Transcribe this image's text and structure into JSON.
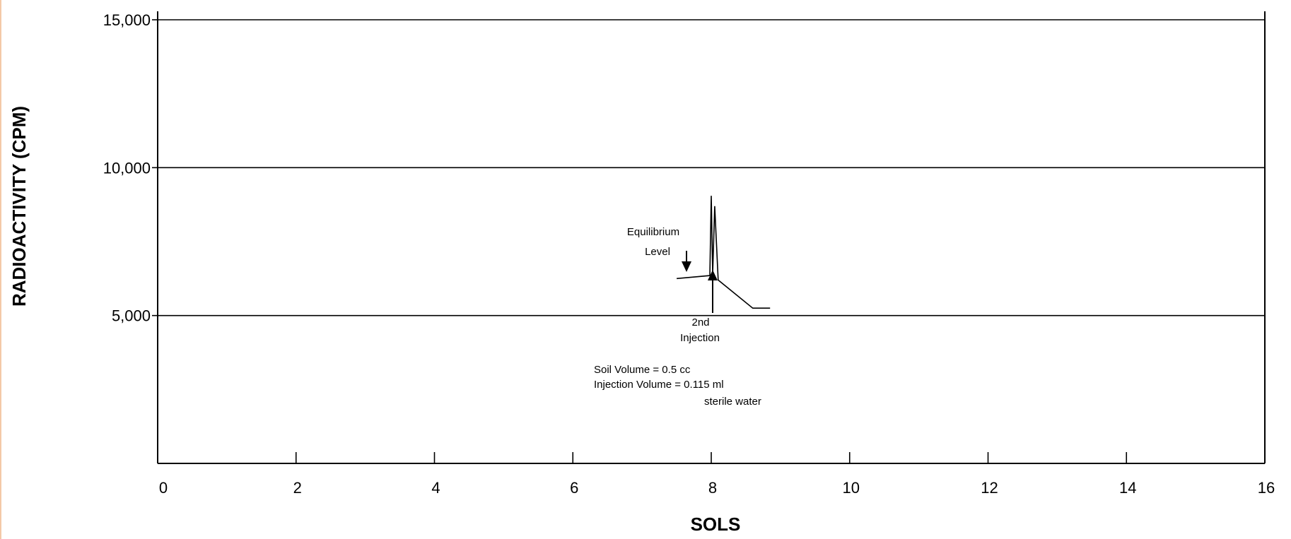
{
  "chart_data": {
    "type": "line",
    "title": "",
    "xlabel": "SOLS",
    "ylabel": "RADIOACTIVITY (CPM)",
    "xlim": [
      0,
      16
    ],
    "ylim": [
      0,
      15000
    ],
    "x_ticks": [
      0,
      2,
      4,
      6,
      8,
      10,
      12,
      14,
      16
    ],
    "x_tick_labels": [
      "0",
      "2",
      "4",
      "6",
      "8",
      "10",
      "12",
      "14",
      "16"
    ],
    "y_ticks": [
      5000,
      10000,
      15000
    ],
    "y_tick_labels": [
      "5,000",
      "10,000",
      "15,000"
    ],
    "grid": {
      "horizontal": true,
      "vertical": false
    },
    "series": [
      {
        "x": [
          7.5,
          7.98,
          8.0,
          8.02,
          8.05,
          8.1,
          8.6,
          8.85
        ],
        "y": [
          6250,
          6350,
          9050,
          6400,
          8700,
          6200,
          5250,
          5250
        ]
      }
    ],
    "annotations": [
      {
        "id": "equilibrium",
        "lines": [
          "Equilibrium",
          "Level"
        ],
        "arrow": "down",
        "x": 7.7,
        "y": 6500
      },
      {
        "id": "injection",
        "lines": [
          "2nd",
          "Injection"
        ],
        "arrow": "up",
        "x": 8.05,
        "y": 6250
      },
      {
        "id": "volume",
        "lines": [
          "Soil Volume = 0.5 cc",
          "Injection Volume = 0.115 ml",
          "sterile water"
        ]
      }
    ]
  }
}
